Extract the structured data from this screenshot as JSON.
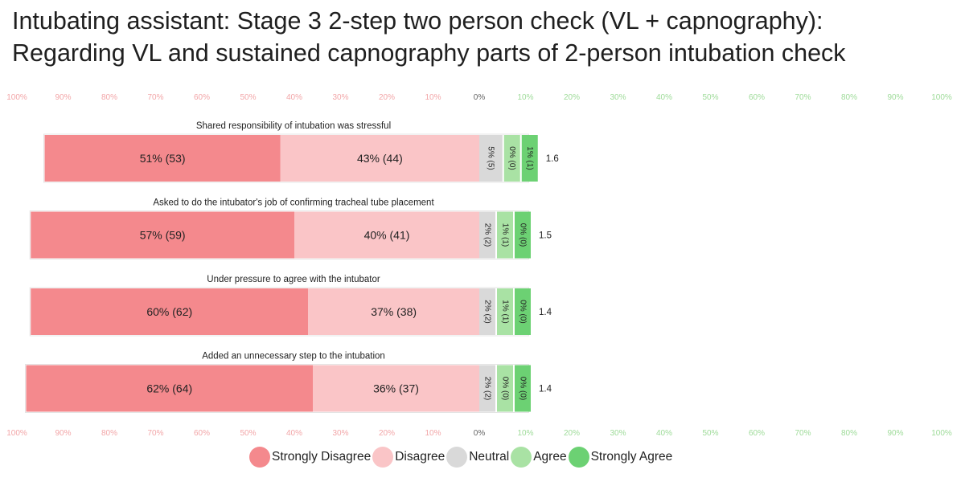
{
  "title_lines": [
    "Intubating assistant: Stage 3 2-step two person check (VL + capnography):",
    "Regarding VL and sustained capnography parts of 2-person intubation check"
  ],
  "colors": {
    "strongly_disagree": "#f4898d",
    "disagree": "#fac5c7",
    "neutral": "#d9d9d9",
    "agree": "#a9e2a4",
    "strongly_agree": "#6cd173",
    "axis_left_text": "#f2a6a8",
    "axis_right_text": "#9edb99"
  },
  "chart_data": {
    "type": "bar",
    "subtype": "diverging-stacked-100",
    "axis_ticks_left": [
      "100%",
      "90%",
      "80%",
      "70%",
      "60%",
      "50%",
      "40%",
      "30%",
      "20%",
      "10%"
    ],
    "axis_zero_label": "0%",
    "axis_ticks_right": [
      "10%",
      "20%",
      "30%",
      "40%",
      "50%",
      "60%",
      "70%",
      "80%",
      "90%",
      "100%"
    ],
    "xlim": [
      -100,
      100
    ],
    "legend_position": "bottom",
    "series": [
      {
        "name": "Strongly Disagree",
        "side": "left"
      },
      {
        "name": "Disagree",
        "side": "left"
      },
      {
        "name": "Neutral",
        "side": "right"
      },
      {
        "name": "Agree",
        "side": "right"
      },
      {
        "name": "Strongly Agree",
        "side": "right"
      }
    ],
    "items": [
      {
        "question": "Shared responsibility of intubation was stressful",
        "values": [
          51,
          43,
          5,
          0,
          1
        ],
        "labels": [
          "51% (53)",
          "43% (44)",
          "5% (5)",
          "0% (0)",
          "1% (1)"
        ],
        "mean": "1.6"
      },
      {
        "question": "Asked to do the intubator's job of confirming tracheal tube placement",
        "values": [
          57,
          40,
          2,
          1,
          0
        ],
        "labels": [
          "57% (59)",
          "40% (41)",
          "2% (2)",
          "1% (1)",
          "0% (0)"
        ],
        "mean": "1.5"
      },
      {
        "question": "Under pressure to agree with the intubator",
        "values": [
          60,
          37,
          2,
          1,
          0
        ],
        "labels": [
          "60% (62)",
          "37% (38)",
          "2% (2)",
          "1% (1)",
          "0% (0)"
        ],
        "mean": "1.4"
      },
      {
        "question": "Added an unnecessary step to the intubation",
        "values": [
          62,
          36,
          2,
          0,
          0
        ],
        "labels": [
          "62% (64)",
          "36% (37)",
          "2% (2)",
          "0% (0)",
          "0% (0)"
        ],
        "mean": "1.4"
      }
    ]
  }
}
